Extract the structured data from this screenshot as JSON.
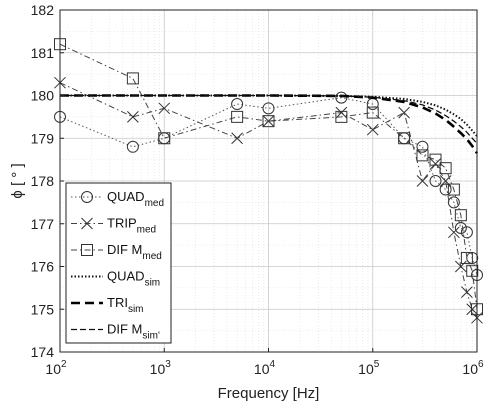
{
  "chart_data": {
    "type": "line",
    "xscale": "log",
    "xlim": [
      100,
      1000000
    ],
    "ylim": [
      174,
      182
    ],
    "grid": true,
    "legend_position": "bottom-left",
    "xlabel": "Frequency [Hz]",
    "ylabel": "ϕ [ ° ]",
    "x_ticks": [
      {
        "value": 100,
        "base": "10",
        "exp": "2"
      },
      {
        "value": 1000,
        "base": "10",
        "exp": "3"
      },
      {
        "value": 10000,
        "base": "10",
        "exp": "4"
      },
      {
        "value": 100000,
        "base": "10",
        "exp": "5"
      },
      {
        "value": 1000000,
        "base": "10",
        "exp": "6"
      }
    ],
    "y_ticks": [
      "174",
      "175",
      "176",
      "177",
      "178",
      "179",
      "180",
      "181",
      "182"
    ],
    "series": [
      {
        "name": "QUAD",
        "sub": "med",
        "style": "dotted",
        "marker": "circle",
        "x": [
          100,
          500,
          1000,
          5000,
          10000,
          50000,
          100000,
          200000,
          300000,
          400000,
          500000,
          600000,
          700000,
          800000,
          900000,
          1000000
        ],
        "y": [
          179.5,
          178.8,
          179.0,
          179.8,
          179.7,
          179.95,
          179.8,
          179.0,
          178.8,
          178.0,
          177.8,
          177.5,
          176.9,
          176.8,
          176.2,
          175.8
        ]
      },
      {
        "name": "TRIP",
        "sub": "med",
        "style": "dashdot",
        "marker": "x",
        "x": [
          100,
          500,
          1000,
          5000,
          10000,
          50000,
          100000,
          200000,
          300000,
          400000,
          500000,
          600000,
          700000,
          800000,
          900000,
          1000000
        ],
        "y": [
          180.3,
          179.5,
          179.7,
          179.0,
          179.4,
          179.6,
          179.2,
          179.6,
          178.0,
          178.4,
          178.0,
          176.8,
          176.0,
          175.4,
          175.0,
          174.8
        ]
      },
      {
        "name": "DIF M",
        "sub": "med",
        "style": "dashdot",
        "marker": "square",
        "x": [
          100,
          500,
          1000,
          5000,
          10000,
          50000,
          100000,
          200000,
          300000,
          400000,
          500000,
          600000,
          700000,
          800000,
          900000,
          1000000
        ],
        "y": [
          181.2,
          180.4,
          179.0,
          179.5,
          179.4,
          179.5,
          179.6,
          179.0,
          178.6,
          178.5,
          178.3,
          177.8,
          177.2,
          176.2,
          175.9,
          175.0
        ]
      },
      {
        "name": "QUAD",
        "sub": "sim",
        "style": "sim-dotted",
        "marker": "none",
        "x": [
          100,
          1000,
          10000,
          50000,
          100000,
          200000,
          300000,
          400000,
          500000,
          600000,
          700000,
          800000,
          900000,
          1000000
        ],
        "y": [
          180.0,
          180.0,
          180.0,
          179.99,
          179.97,
          179.92,
          179.85,
          179.77,
          179.67,
          179.56,
          179.45,
          179.32,
          179.18,
          179.05
        ]
      },
      {
        "name": "TRI",
        "sub": "sim",
        "style": "thick-dashed",
        "marker": "none",
        "x": [
          100,
          1000,
          10000,
          50000,
          100000,
          200000,
          300000,
          400000,
          500000,
          600000,
          700000,
          800000,
          900000,
          1000000
        ],
        "y": [
          180.0,
          180.0,
          180.0,
          179.99,
          179.95,
          179.85,
          179.72,
          179.58,
          179.43,
          179.27,
          179.12,
          178.98,
          178.82,
          178.65
        ]
      },
      {
        "name": "DIF M",
        "sub": "sim'",
        "style": "thin-dashed",
        "marker": "none",
        "x": [
          100,
          1000,
          10000,
          50000,
          100000,
          200000,
          300000,
          400000,
          500000,
          600000,
          700000,
          800000,
          900000,
          1000000
        ],
        "y": [
          180.0,
          180.0,
          180.0,
          179.99,
          179.96,
          179.88,
          179.78,
          179.66,
          179.53,
          179.4,
          179.27,
          179.14,
          179.0,
          178.88
        ]
      }
    ]
  }
}
